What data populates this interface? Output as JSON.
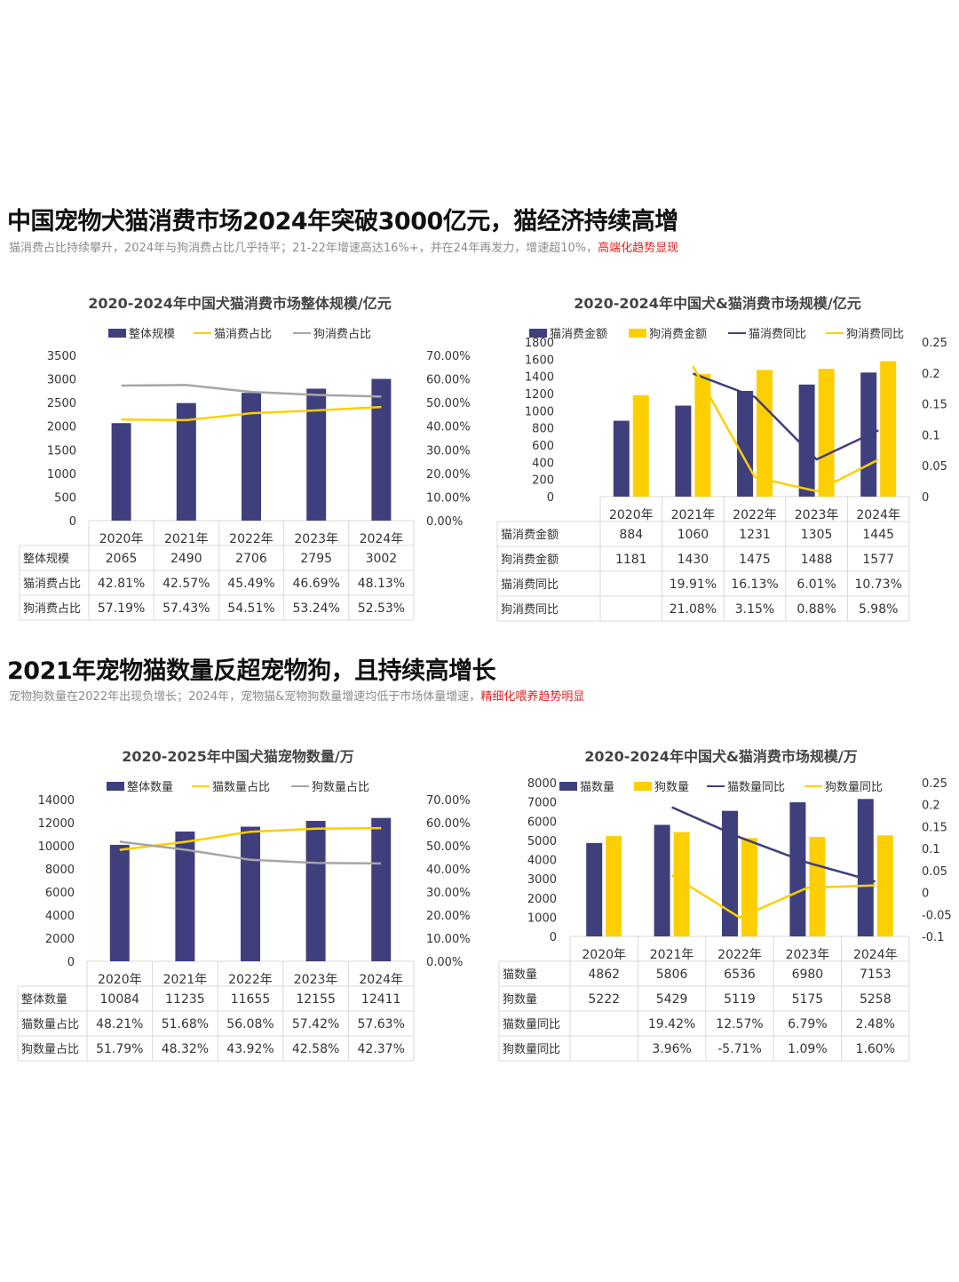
{
  "section1": {
    "headline": "中国宠物犬猫消费市场2024年突破3000亿元，猫经济持续高增",
    "subline_plain": "猫消费占比持续攀升，2024年与狗消费占比几乎持平；21-22年增速高达16%+，并在24年再发力，增速超10%，",
    "subline_highlight": "高端化趋势显现"
  },
  "section2": {
    "headline": "2021年宠物猫数量反超宠物狗，且持续高增长",
    "subline_plain": "宠物狗数量在2022年出现负增长；2024年，宠物猫&宠物狗数量增速均低于市场体量增速，",
    "subline_highlight": "精细化喂养趋势明显"
  },
  "colors": {
    "navy": "#403f7d",
    "yellow": "#fdcf00",
    "gray": "#a6a6a6",
    "highlight": "#e02020"
  },
  "chart_data": [
    {
      "id": "c1",
      "type": "bar",
      "title": "2020-2024年中国犬猫消费市场整体规模/亿元",
      "categories": [
        "2020年",
        "2021年",
        "2022年",
        "2023年",
        "2024年"
      ],
      "left_ticks": [
        "3500",
        "3000",
        "2500",
        "2000",
        "1500",
        "1000",
        "500",
        "0"
      ],
      "right_ticks": [
        "70.00%",
        "60.00%",
        "50.00%",
        "40.00%",
        "30.00%",
        "20.00%",
        "10.00%",
        "0.00%"
      ],
      "ylim": [
        0,
        3500
      ],
      "y2lim": [
        0,
        0.7
      ],
      "legend_position": "top",
      "grid": false,
      "series": [
        {
          "name": "整体规模",
          "kind": "bar",
          "axis": "left",
          "color": "#403f7d",
          "values": [
            2065,
            2490,
            2706,
            2795,
            3002
          ]
        },
        {
          "name": "猫消费占比",
          "kind": "line",
          "axis": "right",
          "color": "#fdcf00",
          "values": [
            0.4281,
            0.4257,
            0.4549,
            0.4669,
            0.4813
          ]
        },
        {
          "name": "狗消费占比",
          "kind": "line",
          "axis": "right",
          "color": "#a6a6a6",
          "values": [
            0.5719,
            0.5743,
            0.5451,
            0.5324,
            0.5253
          ]
        }
      ],
      "table": [
        {
          "label": "整体规模",
          "cells": [
            "2065",
            "2490",
            "2706",
            "2795",
            "3002"
          ]
        },
        {
          "label": "猫消费占比",
          "cells": [
            "42.81%",
            "42.57%",
            "45.49%",
            "46.69%",
            "48.13%"
          ]
        },
        {
          "label": "狗消费占比",
          "cells": [
            "57.19%",
            "57.43%",
            "54.51%",
            "53.24%",
            "52.53%"
          ]
        }
      ]
    },
    {
      "id": "c2",
      "type": "bar",
      "title": "2020-2024年中国犬&猫消费市场规模/亿元",
      "categories": [
        "2020年",
        "2021年",
        "2022年",
        "2023年",
        "2024年"
      ],
      "left_ticks": [
        "1800",
        "1600",
        "1400",
        "1200",
        "1000",
        "800",
        "600",
        "400",
        "200",
        "0"
      ],
      "right_ticks": [
        "0.25",
        "0.2",
        "0.15",
        "0.1",
        "0.05",
        "0"
      ],
      "ylim": [
        0,
        1800
      ],
      "y2lim": [
        0,
        0.25
      ],
      "legend_position": "top",
      "grid": false,
      "series": [
        {
          "name": "猫消费金额",
          "kind": "bar",
          "axis": "left",
          "color": "#403f7d",
          "values": [
            884,
            1060,
            1231,
            1305,
            1445
          ]
        },
        {
          "name": "狗消费金额",
          "kind": "bar",
          "axis": "left",
          "color": "#fdcf00",
          "values": [
            1181,
            1430,
            1475,
            1488,
            1577
          ]
        },
        {
          "name": "猫消费同比",
          "kind": "line",
          "axis": "right",
          "color": "#403f7d",
          "values": [
            null,
            0.1991,
            0.1613,
            0.0601,
            0.1073
          ]
        },
        {
          "name": "狗消费同比",
          "kind": "line",
          "axis": "right",
          "color": "#fdcf00",
          "values": [
            null,
            0.2108,
            0.0315,
            0.0088,
            0.0598
          ]
        }
      ],
      "table": [
        {
          "label": "猫消费金额",
          "cells": [
            "884",
            "1060",
            "1231",
            "1305",
            "1445"
          ]
        },
        {
          "label": "狗消费金额",
          "cells": [
            "1181",
            "1430",
            "1475",
            "1488",
            "1577"
          ]
        },
        {
          "label": "猫消费同比",
          "cells": [
            "",
            "19.91%",
            "16.13%",
            "6.01%",
            "10.73%"
          ]
        },
        {
          "label": "狗消费同比",
          "cells": [
            "",
            "21.08%",
            "3.15%",
            "0.88%",
            "5.98%"
          ]
        }
      ]
    },
    {
      "id": "c3",
      "type": "bar",
      "title": "2020-2025年中国犬猫宠物数量/万",
      "categories": [
        "2020年",
        "2021年",
        "2022年",
        "2023年",
        "2024年"
      ],
      "left_ticks": [
        "14000",
        "12000",
        "10000",
        "8000",
        "6000",
        "4000",
        "2000",
        "0"
      ],
      "right_ticks": [
        "70.00%",
        "60.00%",
        "50.00%",
        "40.00%",
        "30.00%",
        "20.00%",
        "10.00%",
        "0.00%"
      ],
      "ylim": [
        0,
        14000
      ],
      "y2lim": [
        0,
        0.7
      ],
      "legend_position": "top",
      "grid": false,
      "series": [
        {
          "name": "整体数量",
          "kind": "bar",
          "axis": "left",
          "color": "#403f7d",
          "values": [
            10084,
            11235,
            11655,
            12155,
            12411
          ]
        },
        {
          "name": "猫数量占比",
          "kind": "line",
          "axis": "right",
          "color": "#fdcf00",
          "values": [
            0.4821,
            0.5168,
            0.5608,
            0.5742,
            0.5763
          ]
        },
        {
          "name": "狗数量占比",
          "kind": "line",
          "axis": "right",
          "color": "#a6a6a6",
          "values": [
            0.5179,
            0.4832,
            0.4392,
            0.4258,
            0.4237
          ]
        }
      ],
      "table": [
        {
          "label": "整体数量",
          "cells": [
            "10084",
            "11235",
            "11655",
            "12155",
            "12411"
          ]
        },
        {
          "label": "猫数量占比",
          "cells": [
            "48.21%",
            "51.68%",
            "56.08%",
            "57.42%",
            "57.63%"
          ]
        },
        {
          "label": "狗数量占比",
          "cells": [
            "51.79%",
            "48.32%",
            "43.92%",
            "42.58%",
            "42.37%"
          ]
        }
      ]
    },
    {
      "id": "c4",
      "type": "bar",
      "title": "2020-2024年中国犬&猫消费市场规模/万",
      "categories": [
        "2020年",
        "2021年",
        "2022年",
        "2023年",
        "2024年"
      ],
      "left_ticks": [
        "8000",
        "7000",
        "6000",
        "5000",
        "4000",
        "3000",
        "2000",
        "1000",
        "0"
      ],
      "right_ticks": [
        "0.25",
        "0.2",
        "0.15",
        "0.1",
        "0.05",
        "0",
        "-0.05",
        "-0.1"
      ],
      "ylim": [
        0,
        8000
      ],
      "y2lim": [
        -0.1,
        0.25
      ],
      "legend_position": "top",
      "grid": false,
      "series": [
        {
          "name": "猫数量",
          "kind": "bar",
          "axis": "left",
          "color": "#403f7d",
          "values": [
            4862,
            5806,
            6536,
            6980,
            7153
          ]
        },
        {
          "name": "狗数量",
          "kind": "bar",
          "axis": "left",
          "color": "#fdcf00",
          "values": [
            5222,
            5429,
            5119,
            5175,
            5258
          ]
        },
        {
          "name": "猫数量同比",
          "kind": "line",
          "axis": "right",
          "color": "#403f7d",
          "values": [
            null,
            0.1942,
            0.1257,
            0.0679,
            0.0248
          ]
        },
        {
          "name": "狗数量同比",
          "kind": "line",
          "axis": "right",
          "color": "#fdcf00",
          "values": [
            null,
            0.0396,
            -0.0571,
            0.0109,
            0.016
          ]
        }
      ],
      "table": [
        {
          "label": "猫数量",
          "cells": [
            "4862",
            "5806",
            "6536",
            "6980",
            "7153"
          ]
        },
        {
          "label": "狗数量",
          "cells": [
            "5222",
            "5429",
            "5119",
            "5175",
            "5258"
          ]
        },
        {
          "label": "猫数量同比",
          "cells": [
            "",
            "19.42%",
            "12.57%",
            "6.79%",
            "2.48%"
          ]
        },
        {
          "label": "狗数量同比",
          "cells": [
            "",
            "3.96%",
            "-5.71%",
            "1.09%",
            "1.60%"
          ]
        }
      ]
    }
  ]
}
